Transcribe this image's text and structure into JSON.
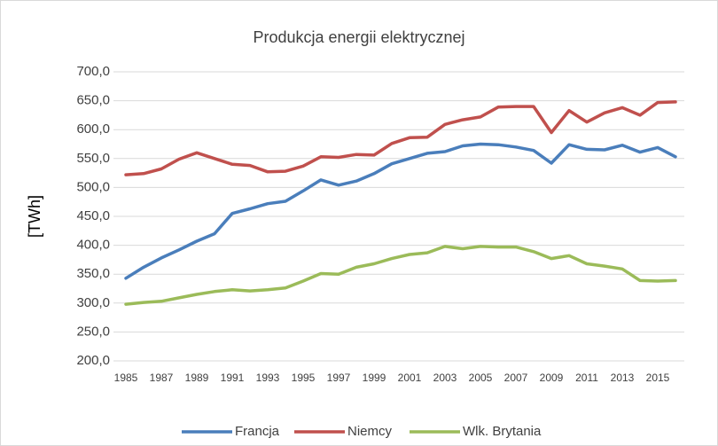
{
  "chart_data": {
    "type": "line",
    "title": "Produkcja energii elektrycznej",
    "y_label": "[TWh]",
    "categories": [
      "1985",
      null,
      "1987",
      null,
      "1989",
      null,
      "1991",
      null,
      "1993",
      null,
      "1995",
      null,
      "1997",
      null,
      "1999",
      null,
      "2001",
      null,
      "2003",
      null,
      "2005",
      null,
      "2007",
      null,
      "2009",
      null,
      "2011",
      null,
      "2013",
      null,
      "2015",
      null
    ],
    "series": [
      {
        "name": "Francja",
        "color": "#4a7ebb",
        "values": [
          343,
          362,
          378,
          392,
          407,
          420,
          455,
          463,
          472,
          476,
          494,
          513,
          504,
          511,
          524,
          541,
          550,
          559,
          562,
          572,
          575,
          574,
          570,
          564,
          542,
          574,
          566,
          565,
          573,
          561,
          569,
          553
        ]
      },
      {
        "name": "Niemcy",
        "color": "#c0504d",
        "values": [
          522,
          524,
          532,
          549,
          560,
          550,
          540,
          538,
          527,
          528,
          537,
          553,
          552,
          557,
          556,
          576,
          586,
          587,
          609,
          617,
          622,
          639,
          640,
          640,
          595,
          633,
          613,
          629,
          638,
          625,
          647,
          648
        ]
      },
      {
        "name": "Wlk. Brytania",
        "color": "#9bbb59",
        "values": [
          298,
          301,
          303,
          309,
          315,
          320,
          323,
          321,
          323,
          326,
          338,
          351,
          350,
          362,
          368,
          377,
          384,
          387,
          398,
          394,
          398,
          397,
          397,
          389,
          377,
          382,
          368,
          364,
          359,
          339,
          338,
          339
        ]
      }
    ],
    "ylim": [
      200,
      700
    ],
    "yticks": [
      {
        "value": 200,
        "label": "200,0"
      },
      {
        "value": 250,
        "label": "250,0"
      },
      {
        "value": 300,
        "label": "300,0"
      },
      {
        "value": 350,
        "label": "350,0"
      },
      {
        "value": 400,
        "label": "400,0"
      },
      {
        "value": 450,
        "label": "450,0"
      },
      {
        "value": 500,
        "label": "500,0"
      },
      {
        "value": 550,
        "label": "550,0"
      },
      {
        "value": 600,
        "label": "600,0"
      },
      {
        "value": 650,
        "label": "650,0"
      },
      {
        "value": 700,
        "label": "700,0"
      }
    ],
    "grid": true,
    "legend": "bottom"
  }
}
